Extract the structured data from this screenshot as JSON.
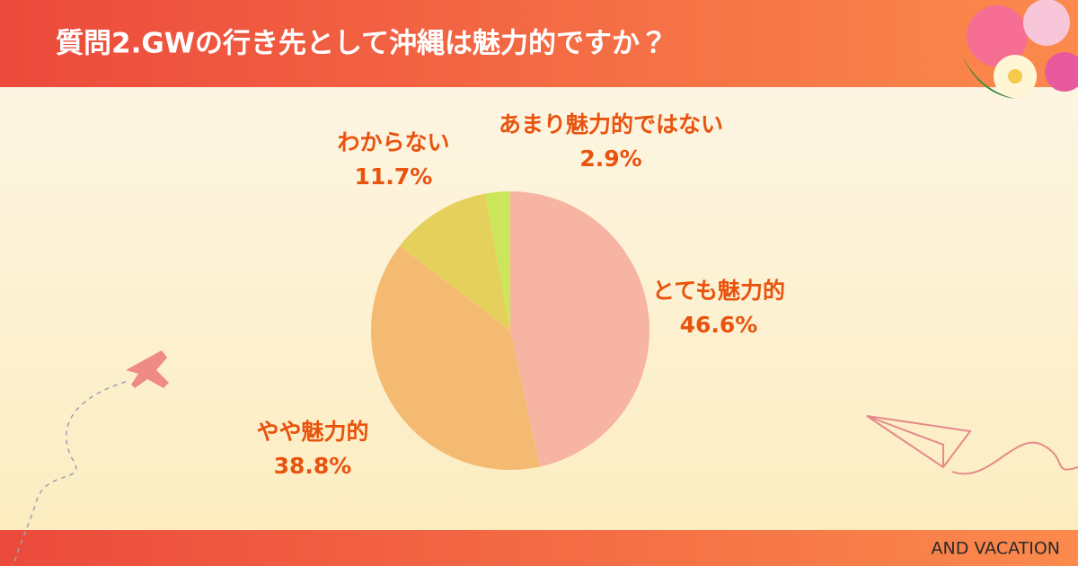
{
  "chart_data": {
    "type": "pie",
    "title": "質問2.GWの行き先として沖縄は魅力的ですか？",
    "categories": [
      "とても魅力的",
      "やや魅力的",
      "わからない",
      "あまり魅力的ではない"
    ],
    "values": [
      46.6,
      38.8,
      11.7,
      2.9
    ],
    "value_labels": [
      "46.6%",
      "38.8%",
      "11.7%",
      "2.9%"
    ],
    "colors": [
      "#f7b4a3",
      "#f5ba72",
      "#e6d05c",
      "#cbe65a"
    ]
  },
  "footer": "AND VACATION"
}
